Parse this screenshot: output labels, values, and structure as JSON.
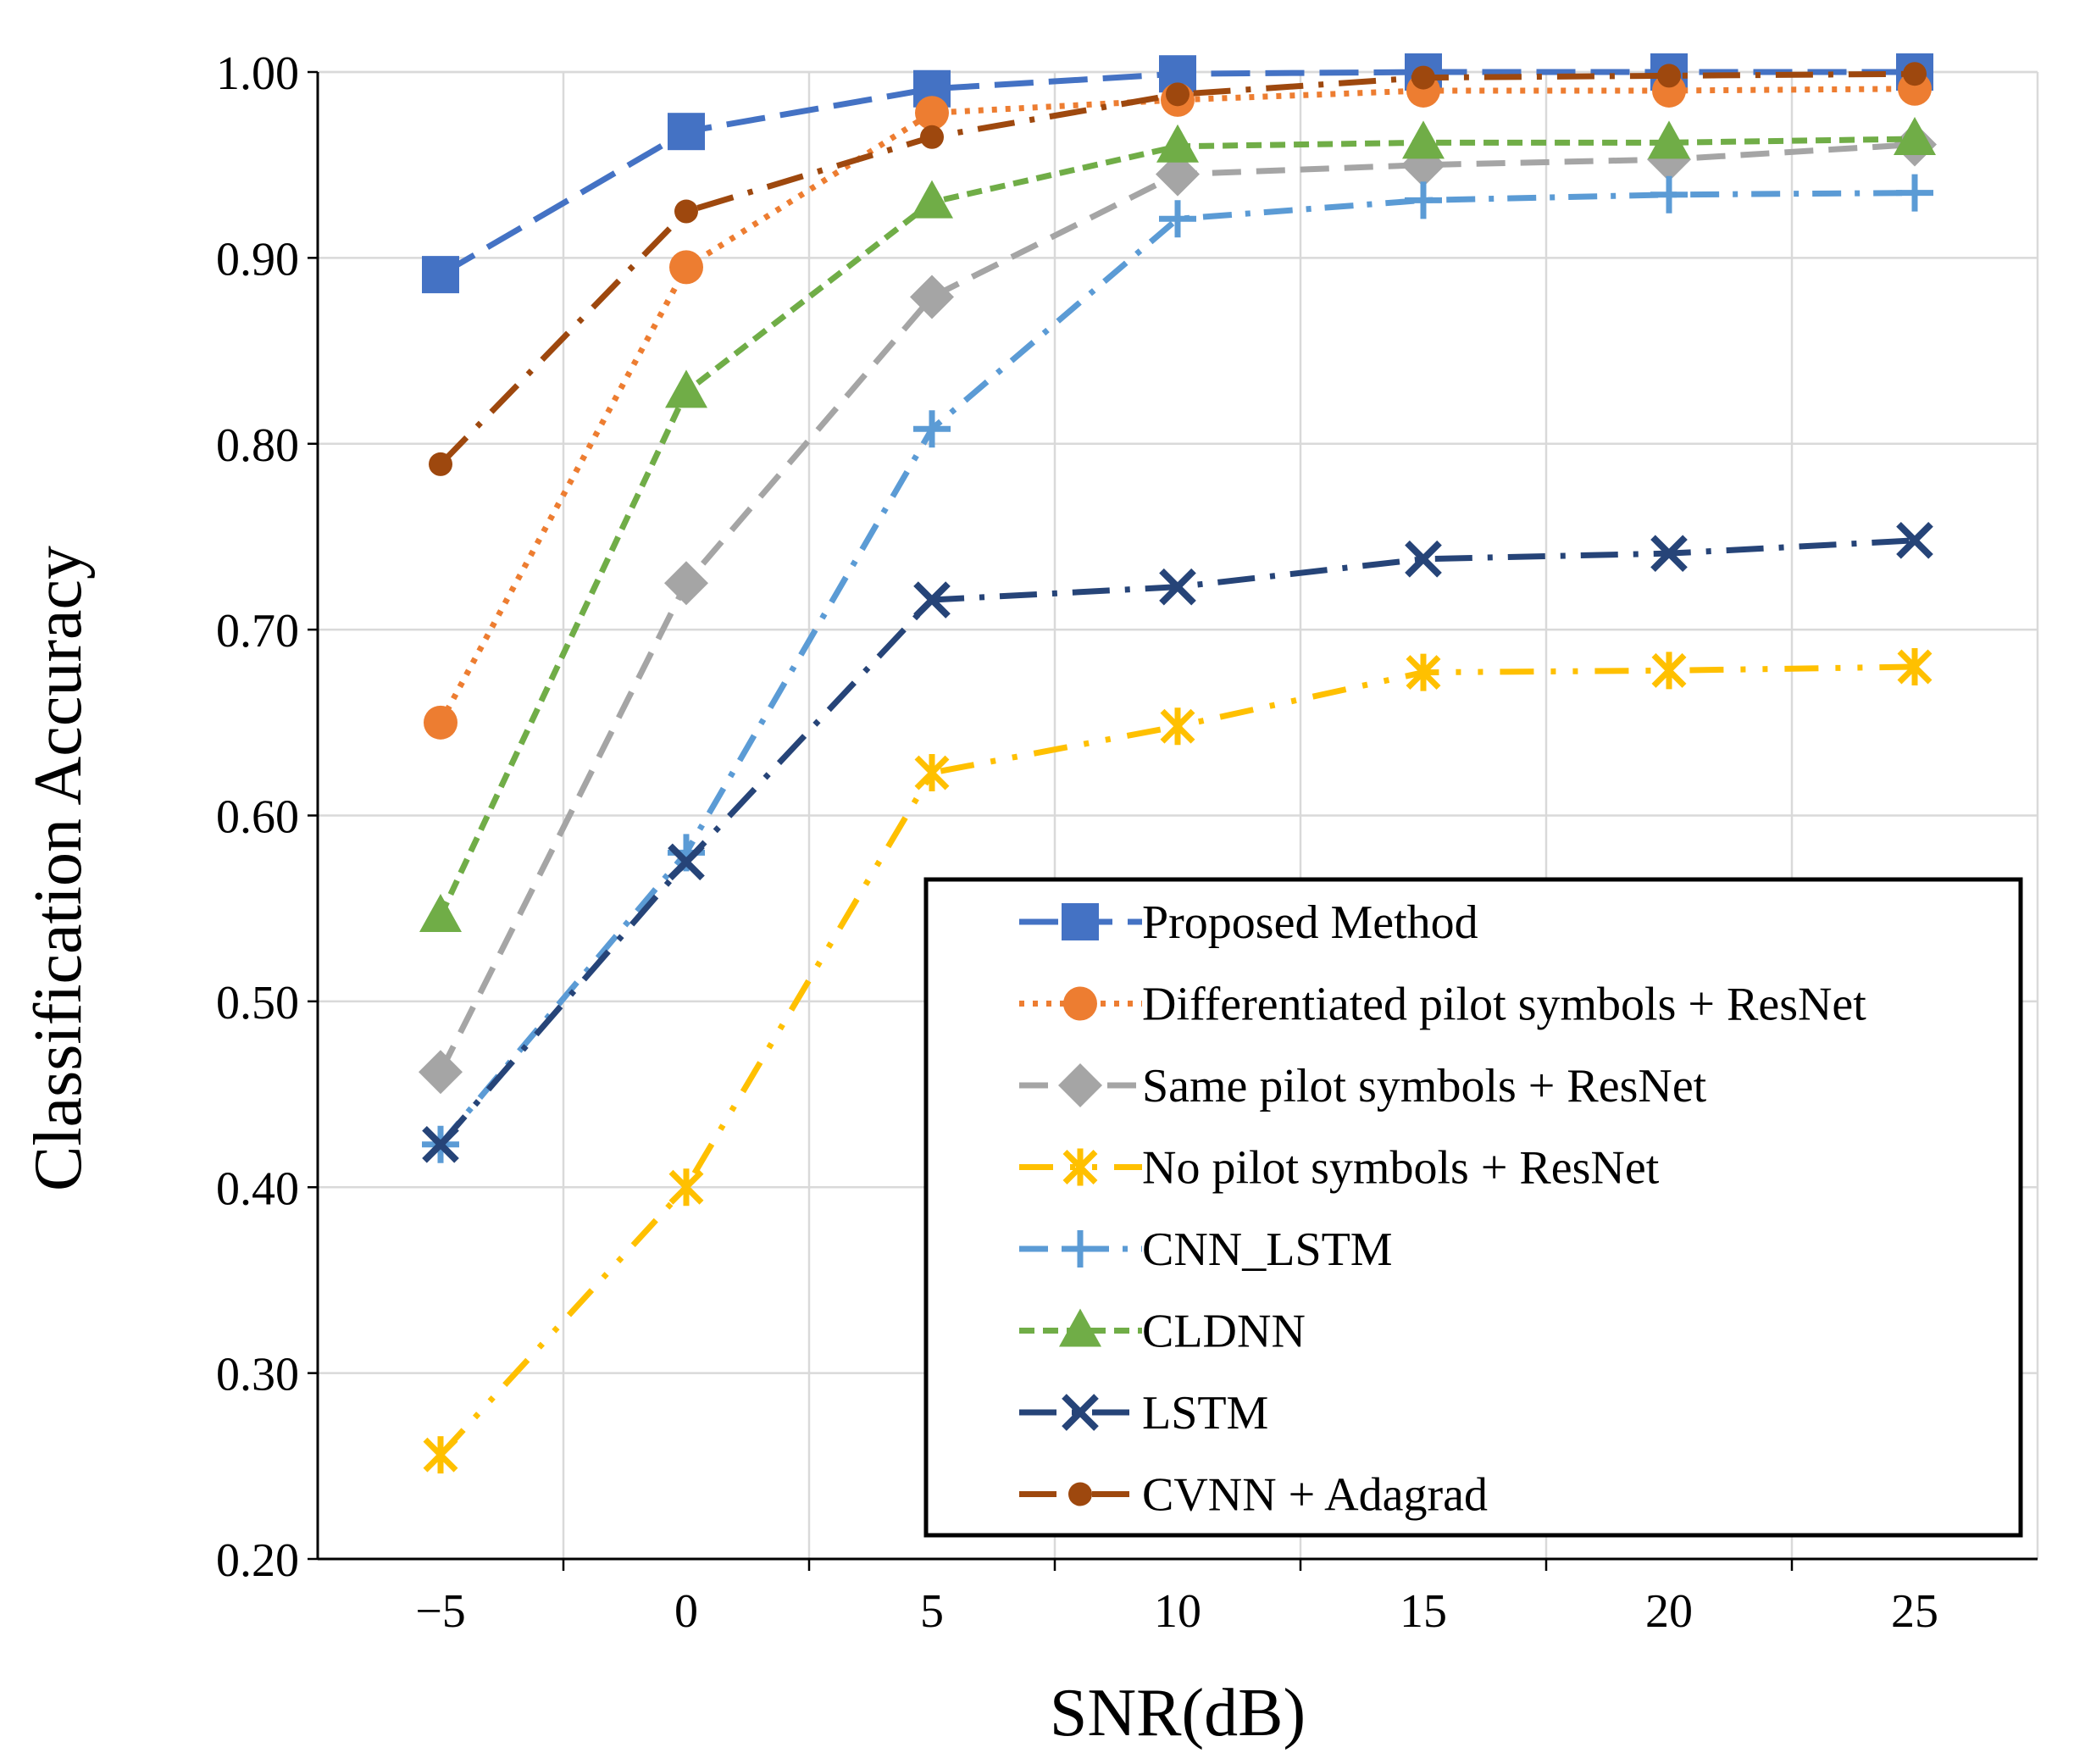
{
  "chart_data": {
    "type": "line",
    "title": "",
    "xlabel": "SNR(dB)",
    "ylabel": "Classification Accuracy",
    "x": [
      -5,
      0,
      5,
      10,
      15,
      20,
      25
    ],
    "x_tick_labels": [
      "−5",
      "0",
      "5",
      "10",
      "15",
      "20",
      "25"
    ],
    "xlim": [
      -10,
      30
    ],
    "ylim": [
      0.2,
      1.0
    ],
    "y_ticks": [
      0.2,
      0.3,
      0.4,
      0.5,
      0.6,
      0.7,
      0.8,
      0.9,
      1.0
    ],
    "y_tick_labels": [
      "0.20",
      "0.30",
      "0.40",
      "0.50",
      "0.60",
      "0.70",
      "0.80",
      "0.90",
      "1.00"
    ],
    "grid": true,
    "legend_position": "bottom-right",
    "series": [
      {
        "name": "Proposed Method",
        "values": [
          0.891,
          0.968,
          0.991,
          0.999,
          1.0,
          1.0,
          1.0
        ],
        "color": "#4472C4",
        "marker": "square",
        "dash": "long-dash"
      },
      {
        "name": "Differentiated pilot symbols + ResNet",
        "values": [
          0.65,
          0.895,
          0.978,
          0.985,
          0.99,
          0.99,
          0.991
        ],
        "color": "#ED7D31",
        "marker": "circle",
        "dash": "dot"
      },
      {
        "name": "Same pilot symbols + ResNet",
        "values": [
          0.462,
          0.725,
          0.879,
          0.945,
          0.95,
          0.953,
          0.961
        ],
        "color": "#A5A5A5",
        "marker": "diamond",
        "dash": "dash"
      },
      {
        "name": "No pilot symbols + ResNet",
        "values": [
          0.256,
          0.4,
          0.623,
          0.648,
          0.677,
          0.678,
          0.68
        ],
        "color": "#FFC000",
        "marker": "asterisk",
        "dash": "long-dash-dot-dot"
      },
      {
        "name": "CNN_LSTM",
        "values": [
          0.423,
          0.58,
          0.808,
          0.921,
          0.931,
          0.934,
          0.935
        ],
        "color": "#5B9BD5",
        "marker": "plus",
        "dash": "dash-dot"
      },
      {
        "name": "CLDNN",
        "values": [
          0.546,
          0.828,
          0.93,
          0.96,
          0.962,
          0.962,
          0.964
        ],
        "color": "#70AD47",
        "marker": "triangle",
        "dash": "short-dash"
      },
      {
        "name": "LSTM",
        "values": [
          0.423,
          0.575,
          0.716,
          0.723,
          0.738,
          0.741,
          0.748
        ],
        "color": "#264478",
        "marker": "x",
        "dash": "long-dash-dot"
      },
      {
        "name": "CVNN + Adagrad",
        "values": [
          0.789,
          0.925,
          0.965,
          0.988,
          0.997,
          0.998,
          0.999
        ],
        "color": "#9E480E",
        "marker": "circle-small",
        "dash": "long-dash-dot"
      }
    ]
  }
}
